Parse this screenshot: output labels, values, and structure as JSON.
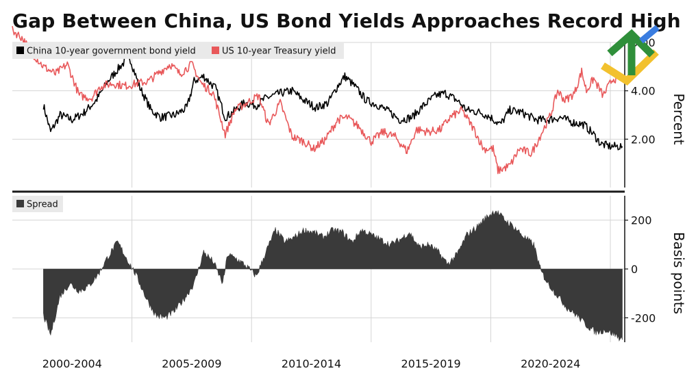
{
  "title": "Gap Between China, US Bond Yields Approaches Record High",
  "colors": {
    "china": "#000000",
    "us": "#e8585a",
    "spread": "#3a3a3a",
    "legend_bg": "#e9e9e9",
    "grid": "#d4d4d4",
    "divider": "#1a1a1a"
  },
  "chart_data": [
    {
      "type": "line",
      "title": "",
      "ylabel": "Percent",
      "ylim": [
        0,
        6.0
      ],
      "yticks": [
        "2.00",
        "4.00",
        "6.00"
      ],
      "legend": "top-left",
      "grid": true,
      "x_domain": [
        2000.0,
        2025.6
      ],
      "series": [
        {
          "name": "China 10-year government bond yield",
          "color": "#000000",
          "points": [
            [
              2001.3,
              3.4
            ],
            [
              2001.6,
              2.3
            ],
            [
              2002.0,
              3.0
            ],
            [
              2002.5,
              2.8
            ],
            [
              2003.0,
              3.1
            ],
            [
              2003.5,
              3.6
            ],
            [
              2004.0,
              4.4
            ],
            [
              2004.5,
              5.0
            ],
            [
              2004.9,
              5.4
            ],
            [
              2005.3,
              4.2
            ],
            [
              2005.8,
              3.2
            ],
            [
              2006.2,
              2.9
            ],
            [
              2006.8,
              3.0
            ],
            [
              2007.3,
              3.3
            ],
            [
              2007.6,
              4.4
            ],
            [
              2008.0,
              4.6
            ],
            [
              2008.5,
              4.1
            ],
            [
              2008.9,
              2.9
            ],
            [
              2009.2,
              3.1
            ],
            [
              2009.7,
              3.5
            ],
            [
              2010.2,
              3.4
            ],
            [
              2010.6,
              3.7
            ],
            [
              2011.2,
              3.9
            ],
            [
              2011.7,
              4.0
            ],
            [
              2012.2,
              3.6
            ],
            [
              2012.7,
              3.3
            ],
            [
              2013.2,
              3.5
            ],
            [
              2013.6,
              4.2
            ],
            [
              2013.9,
              4.6
            ],
            [
              2014.3,
              4.2
            ],
            [
              2014.8,
              3.6
            ],
            [
              2015.3,
              3.4
            ],
            [
              2015.8,
              3.1
            ],
            [
              2016.2,
              2.8
            ],
            [
              2016.7,
              2.9
            ],
            [
              2017.2,
              3.4
            ],
            [
              2017.7,
              3.8
            ],
            [
              2018.1,
              3.9
            ],
            [
              2018.6,
              3.6
            ],
            [
              2019.0,
              3.2
            ],
            [
              2019.6,
              3.1
            ],
            [
              2020.0,
              2.9
            ],
            [
              2020.4,
              2.6
            ],
            [
              2020.8,
              3.2
            ],
            [
              2021.3,
              3.1
            ],
            [
              2021.9,
              2.8
            ],
            [
              2022.4,
              2.8
            ],
            [
              2022.9,
              2.9
            ],
            [
              2023.4,
              2.7
            ],
            [
              2023.9,
              2.6
            ],
            [
              2024.3,
              2.2
            ],
            [
              2024.6,
              1.8
            ],
            [
              2025.0,
              1.7
            ],
            [
              2025.5,
              1.7
            ]
          ]
        },
        {
          "name": "US 10-year Treasury yield",
          "color": "#e8585a",
          "points": [
            [
              2000.0,
              6.5
            ],
            [
              2000.4,
              6.2
            ],
            [
              2000.8,
              5.6
            ],
            [
              2001.3,
              5.0
            ],
            [
              2001.8,
              4.7
            ],
            [
              2002.3,
              5.1
            ],
            [
              2002.8,
              3.8
            ],
            [
              2003.3,
              3.7
            ],
            [
              2003.7,
              4.2
            ],
            [
              2004.2,
              4.3
            ],
            [
              2004.7,
              4.2
            ],
            [
              2005.2,
              4.3
            ],
            [
              2005.7,
              4.4
            ],
            [
              2006.2,
              4.8
            ],
            [
              2006.6,
              5.1
            ],
            [
              2007.0,
              4.7
            ],
            [
              2007.5,
              5.1
            ],
            [
              2007.9,
              4.3
            ],
            [
              2008.4,
              3.9
            ],
            [
              2008.9,
              2.2
            ],
            [
              2009.3,
              3.2
            ],
            [
              2009.8,
              3.5
            ],
            [
              2010.3,
              3.8
            ],
            [
              2010.7,
              2.6
            ],
            [
              2011.2,
              3.5
            ],
            [
              2011.7,
              2.1
            ],
            [
              2012.2,
              1.9
            ],
            [
              2012.6,
              1.6
            ],
            [
              2013.1,
              2.0
            ],
            [
              2013.6,
              2.8
            ],
            [
              2014.0,
              2.9
            ],
            [
              2014.5,
              2.5
            ],
            [
              2015.0,
              1.9
            ],
            [
              2015.5,
              2.3
            ],
            [
              2016.0,
              2.1
            ],
            [
              2016.5,
              1.5
            ],
            [
              2016.9,
              2.4
            ],
            [
              2017.4,
              2.3
            ],
            [
              2017.9,
              2.4
            ],
            [
              2018.3,
              2.9
            ],
            [
              2018.8,
              3.2
            ],
            [
              2019.3,
              2.4
            ],
            [
              2019.7,
              1.6
            ],
            [
              2020.1,
              1.6
            ],
            [
              2020.3,
              0.7
            ],
            [
              2020.8,
              0.9
            ],
            [
              2021.2,
              1.6
            ],
            [
              2021.7,
              1.4
            ],
            [
              2022.1,
              2.2
            ],
            [
              2022.5,
              3.0
            ],
            [
              2022.8,
              4.0
            ],
            [
              2023.1,
              3.6
            ],
            [
              2023.5,
              3.9
            ],
            [
              2023.8,
              4.8
            ],
            [
              2024.0,
              4.0
            ],
            [
              2024.3,
              4.5
            ],
            [
              2024.7,
              3.8
            ],
            [
              2025.1,
              4.5
            ],
            [
              2025.5,
              4.5
            ]
          ]
        }
      ]
    },
    {
      "type": "area",
      "title": "",
      "ylabel": "Basis points",
      "ylim": [
        -300,
        300
      ],
      "yticks": [
        "200",
        "0",
        "-200"
      ],
      "legend": "top-left",
      "grid": true,
      "x_domain": [
        2000.0,
        2025.6
      ],
      "xticks": [
        "2000-2004",
        "2005-2009",
        "2010-2014",
        "2015-2019",
        "2020-2024"
      ],
      "series": [
        {
          "name": "Spread",
          "color": "#3a3a3a",
          "points": [
            [
              2001.3,
              -190
            ],
            [
              2001.6,
              -270
            ],
            [
              2002.0,
              -110
            ],
            [
              2002.4,
              -60
            ],
            [
              2002.8,
              -90
            ],
            [
              2003.2,
              -70
            ],
            [
              2003.6,
              -20
            ],
            [
              2004.0,
              50
            ],
            [
              2004.4,
              110
            ],
            [
              2004.8,
              40
            ],
            [
              2005.2,
              -30
            ],
            [
              2005.6,
              -120
            ],
            [
              2006.0,
              -190
            ],
            [
              2006.4,
              -200
            ],
            [
              2006.8,
              -170
            ],
            [
              2007.2,
              -120
            ],
            [
              2007.6,
              -60
            ],
            [
              2008.0,
              70
            ],
            [
              2008.4,
              30
            ],
            [
              2008.8,
              -60
            ],
            [
              2009.0,
              60
            ],
            [
              2009.4,
              40
            ],
            [
              2009.8,
              10
            ],
            [
              2010.2,
              -30
            ],
            [
              2010.6,
              70
            ],
            [
              2011.0,
              160
            ],
            [
              2011.4,
              110
            ],
            [
              2011.8,
              130
            ],
            [
              2012.2,
              160
            ],
            [
              2012.6,
              150
            ],
            [
              2013.0,
              130
            ],
            [
              2013.4,
              160
            ],
            [
              2013.8,
              150
            ],
            [
              2014.2,
              110
            ],
            [
              2014.6,
              160
            ],
            [
              2015.0,
              140
            ],
            [
              2015.4,
              120
            ],
            [
              2015.8,
              100
            ],
            [
              2016.2,
              120
            ],
            [
              2016.6,
              150
            ],
            [
              2017.0,
              90
            ],
            [
              2017.4,
              100
            ],
            [
              2017.8,
              70
            ],
            [
              2018.2,
              20
            ],
            [
              2018.6,
              60
            ],
            [
              2019.0,
              140
            ],
            [
              2019.4,
              170
            ],
            [
              2019.8,
              210
            ],
            [
              2020.2,
              240
            ],
            [
              2020.6,
              200
            ],
            [
              2021.0,
              170
            ],
            [
              2021.4,
              130
            ],
            [
              2021.8,
              100
            ],
            [
              2022.1,
              -10
            ],
            [
              2022.4,
              -60
            ],
            [
              2022.8,
              -110
            ],
            [
              2023.2,
              -160
            ],
            [
              2023.6,
              -190
            ],
            [
              2024.0,
              -230
            ],
            [
              2024.4,
              -260
            ],
            [
              2024.8,
              -250
            ],
            [
              2025.2,
              -270
            ],
            [
              2025.5,
              -290
            ]
          ]
        }
      ]
    }
  ]
}
